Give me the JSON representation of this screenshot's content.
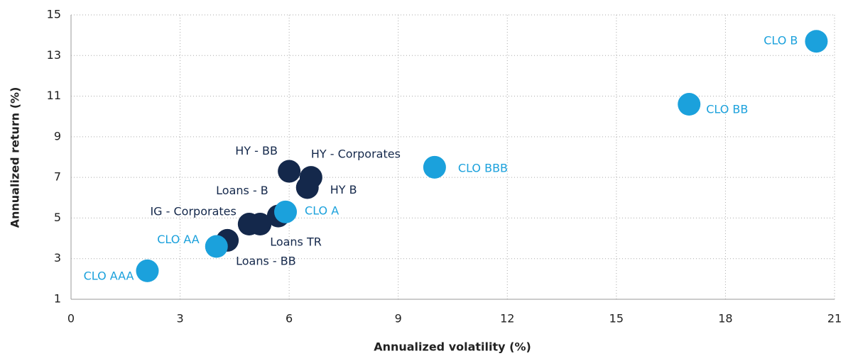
{
  "chart_data": {
    "type": "scatter",
    "xlabel": "Annualized volatility (%)",
    "ylabel": "Annualized return (%)",
    "xlim": [
      0,
      21
    ],
    "xticks": [
      0,
      3,
      6,
      9,
      12,
      15,
      18,
      21
    ],
    "ylim": [
      1,
      15
    ],
    "yticks": [
      1,
      3,
      5,
      7,
      9,
      11,
      13,
      15
    ],
    "grid": true,
    "points": [
      {
        "label": "HY - BB",
        "x": 6.0,
        "y": 7.3,
        "color": "#14284b"
      },
      {
        "label": "HY - Corporates",
        "x": 6.6,
        "y": 7.0,
        "color": "#14284b"
      },
      {
        "label": "HY B",
        "x": 6.5,
        "y": 6.5,
        "color": "#14284b"
      },
      {
        "label": "Loans - BB",
        "x": 4.3,
        "y": 3.9,
        "color": "#14284b"
      },
      {
        "label": "IG - Corporates",
        "x": 4.9,
        "y": 4.7,
        "color": "#14284b"
      },
      {
        "label": "Loans TR",
        "x": 5.2,
        "y": 4.7,
        "color": "#14284b"
      },
      {
        "label": "Loans - B",
        "x": 5.7,
        "y": 5.1,
        "color": "#14284b"
      },
      {
        "label": "CLO B",
        "x": 20.5,
        "y": 13.7,
        "color": "#1ba1dc"
      },
      {
        "label": "CLO BB",
        "x": 17.0,
        "y": 10.6,
        "color": "#1ba1dc"
      },
      {
        "label": "CLO BBB",
        "x": 10.0,
        "y": 7.5,
        "color": "#1ba1dc"
      },
      {
        "label": "CLO A",
        "x": 5.9,
        "y": 5.3,
        "color": "#1ba1dc"
      },
      {
        "label": "CLO AA",
        "x": 4.0,
        "y": 3.6,
        "color": "#1ba1dc"
      },
      {
        "label": "CLO AAA",
        "x": 2.1,
        "y": 2.4,
        "color": "#1ba1dc"
      }
    ]
  }
}
